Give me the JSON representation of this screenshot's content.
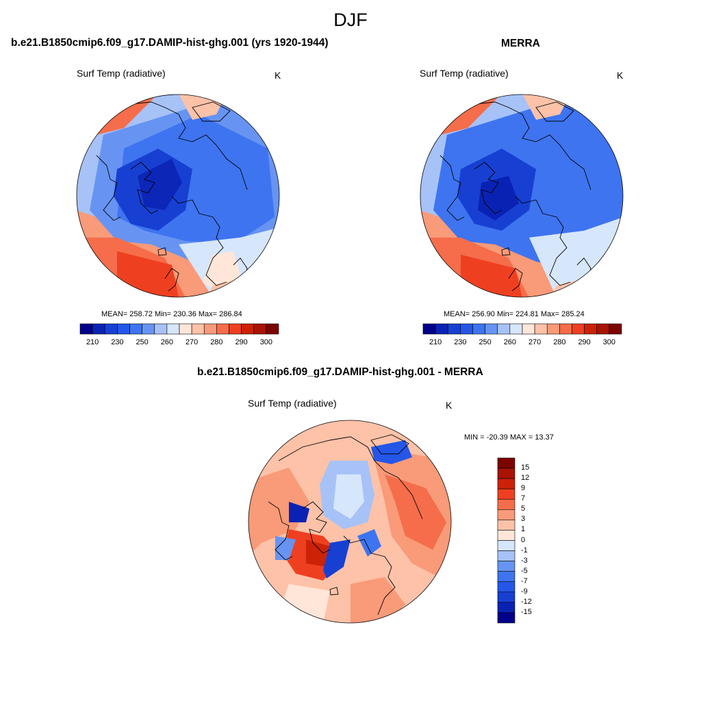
{
  "figure": {
    "season": "DJF"
  },
  "panels": [
    {
      "id": "model",
      "title": "b.e21.B1850cmip6.f09_g17.DAMIP-hist-ghg.001 (yrs 1920-1944)",
      "variable": "Surf Temp (radiative)",
      "units": "K",
      "stats": "MEAN= 258.72  Min= 230.36  Max= 286.84"
    },
    {
      "id": "obs",
      "title": "MERRA",
      "variable": "Surf Temp (radiative)",
      "units": "K",
      "stats": "MEAN= 256.90  Min= 224.81  Max= 285.24"
    },
    {
      "id": "diff",
      "title": "b.e21.B1850cmip6.f09_g17.DAMIP-hist-ghg.001 - MERRA",
      "variable": "Surf Temp (radiative)",
      "units": "K",
      "stats": "MIN = -20.39 MAX =  13.37"
    }
  ],
  "colorbar_abs": {
    "colors": [
      "#00008a",
      "#0a22b4",
      "#1740d2",
      "#2456e8",
      "#3e74f0",
      "#6794f2",
      "#a7c2f7",
      "#d6e6fb",
      "#ffe6d8",
      "#fdc2a8",
      "#f99a78",
      "#f56d4a",
      "#ee4020",
      "#cc2208",
      "#a81303",
      "#7c0400"
    ],
    "tick_labels": [
      "210",
      "230",
      "250",
      "260",
      "270",
      "280",
      "290",
      "300"
    ]
  },
  "colorbar_diff": {
    "colors": [
      "#7c0400",
      "#a81303",
      "#cc2208",
      "#ee4020",
      "#f56d4a",
      "#f99a78",
      "#fdc2a8",
      "#ffe6d8",
      "#d6e6fb",
      "#a7c2f7",
      "#6794f2",
      "#3e74f0",
      "#2456e8",
      "#1740d2",
      "#0a22b4",
      "#00008a"
    ],
    "tick_labels": [
      "15",
      "12",
      "9",
      "7",
      "5",
      "3",
      "1",
      "0",
      "-1",
      "-3",
      "-5",
      "-7",
      "-9",
      "-12",
      "-15"
    ]
  }
}
